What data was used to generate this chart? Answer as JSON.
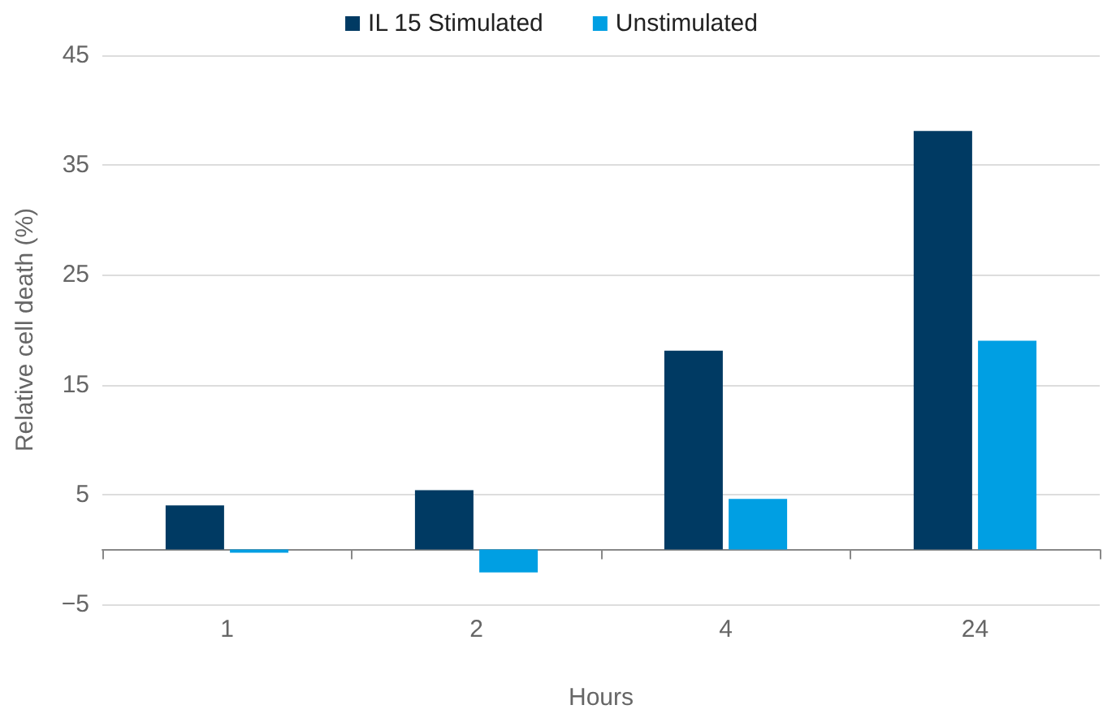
{
  "chart_data": {
    "type": "bar",
    "xlabel": "Hours",
    "ylabel": "Relative cell death (%)",
    "categories": [
      "1",
      "2",
      "4",
      "24"
    ],
    "series": [
      {
        "name": "IL 15 Stimulated",
        "color": "#003a63",
        "values": [
          4.0,
          5.4,
          18.1,
          38.1
        ]
      },
      {
        "name": "Unstimulated",
        "color": "#009fe3",
        "values": [
          -0.3,
          -2.1,
          4.6,
          19.0
        ]
      }
    ],
    "ylim": [
      -5,
      45
    ],
    "yticks": [
      {
        "value": -5,
        "label": "−5"
      },
      5,
      15,
      25,
      35,
      45
    ],
    "grid": "y",
    "legend": "top"
  }
}
